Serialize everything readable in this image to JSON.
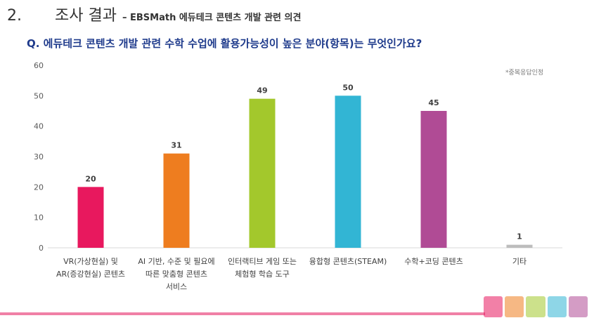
{
  "header": {
    "section_number": "2.",
    "section_title": "조사 결과",
    "section_subtitle": "– EBSMath 에듀테크 콘텐츠 개발 관련 의견"
  },
  "question": "Q. 에듀테크 콘텐츠 개발 관련 수학 수업에 활용가능성이 높은 분야(항목)는 무엇인가요?",
  "footnote": "*중복응답인정",
  "chart_data": {
    "type": "bar",
    "categories": [
      [
        "VR(가상현실) 및",
        "AR(증강현실) 콘텐츠"
      ],
      [
        "AI 기반, 수준 및 필요에",
        "따른 맞춤형 콘텐츠",
        "서비스"
      ],
      [
        "인터랙티브 게임 또는",
        "체험형 학습 도구"
      ],
      [
        "융합형 콘텐츠(STEAM)"
      ],
      [
        "수학+코딩 콘텐츠"
      ],
      [
        "기타"
      ]
    ],
    "values": [
      20,
      31,
      49,
      50,
      45,
      1
    ],
    "colors": [
      "#e8185e",
      "#ee7d1f",
      "#a3c82c",
      "#32b5d4",
      "#b04b95",
      "#bdbdbd"
    ],
    "yticks": [
      0,
      10,
      20,
      30,
      40,
      50,
      60
    ],
    "ylim": [
      0,
      60
    ],
    "grid": false,
    "data_labels": true
  }
}
